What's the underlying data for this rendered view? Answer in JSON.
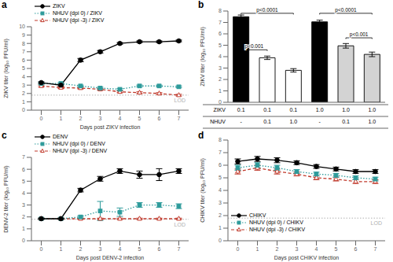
{
  "chart_data": [
    {
      "type": "line",
      "title": "a",
      "xlabel": "Days post ZIKV infection",
      "ylabel": "ZIKV titer (log₁₀ PFU/ml)",
      "x": [
        0,
        1,
        2,
        3,
        4,
        5,
        6,
        7
      ],
      "xlim": [
        -0.5,
        7.5
      ],
      "xticks": [
        0,
        1,
        2,
        3,
        4,
        5,
        6,
        7
      ],
      "ylim": [
        0,
        10
      ],
      "yticks": [
        0,
        1,
        2,
        3,
        4,
        5,
        6,
        7,
        8,
        9,
        10
      ],
      "legend": "upper left",
      "grid": false,
      "series": [
        {
          "name": "ZIKV",
          "color": "#000000",
          "marker": "circle",
          "line_style": "solid",
          "values": [
            3.3,
            3.0,
            6.0,
            7.0,
            8.0,
            8.2,
            8.2,
            8.3
          ],
          "errors": [
            0.1,
            0.1,
            0.2,
            0.15,
            0.1,
            0.1,
            0.1,
            0.1
          ]
        },
        {
          "name": "NHUV (dpi 0) / ZIKV",
          "color": "#2E9B9B",
          "marker": "square",
          "line_style": "dotted",
          "values": [
            3.2,
            3.2,
            2.9,
            2.65,
            2.5,
            2.9,
            2.9,
            2.8
          ],
          "errors": [
            0.1,
            0.1,
            0.1,
            0.1,
            0.1,
            0.1,
            0.1,
            0.1
          ]
        },
        {
          "name": "NHUV (dpi -3) / ZIKV",
          "color": "#C0392B",
          "marker": "open_triangle",
          "line_style": "dashed",
          "values": [
            2.9,
            2.7,
            2.65,
            2.5,
            2.2,
            2.1,
            2.0,
            1.8
          ],
          "errors": [
            0.1,
            0.1,
            0.1,
            0.1,
            0.1,
            0.1,
            0.1,
            0.1
          ]
        }
      ],
      "annotations": [
        {
          "text": "LOD",
          "y": 1.8,
          "color": "#B0B0B0",
          "line_style": "dotted"
        }
      ]
    },
    {
      "type": "bar",
      "title": "b",
      "ylabel": "ZIKV titer (log₁₀ PFU/ml)",
      "categories": [
        null,
        null,
        null,
        null,
        null,
        null
      ],
      "values": [
        7.5,
        3.9,
        2.8,
        7.05,
        4.95,
        4.2
      ],
      "errors": [
        0.15,
        0.15,
        0.15,
        0.15,
        0.2,
        0.2
      ],
      "colors": [
        "black",
        "white",
        "white",
        "black",
        "lightgray",
        "lightgray"
      ],
      "edge_colors": [
        "black",
        "black",
        "black",
        "black",
        "black",
        "black"
      ],
      "ylim": [
        0,
        8
      ],
      "yticks": [
        0,
        1,
        2,
        3,
        4,
        5,
        6,
        7,
        8
      ],
      "grid": false,
      "annotations": [
        {
          "text": "p<0.0001",
          "from": 0,
          "to": 2,
          "y": 7.7
        },
        {
          "text": "p<0.001",
          "from": 0,
          "to": 1,
          "y": 4.5
        },
        {
          "text": "p<0.0001",
          "from": 3,
          "to": 5,
          "y": 7.7
        },
        {
          "text": "p<0.001",
          "from": 4,
          "to": 5,
          "y": 5.55
        }
      ],
      "table": [
        {
          "label": "ZIKV",
          "values": [
            "0.1",
            "0.1",
            "0.1",
            "1.0",
            "1.0",
            "1.0"
          ]
        },
        {
          "label": "NHUV",
          "values": [
            "-",
            "0.1",
            "1.0",
            "-",
            "0.1",
            "1.0"
          ]
        }
      ]
    },
    {
      "type": "line",
      "title": "c",
      "xlabel": "Days post DENV-2 infection",
      "ylabel": "DENV-2 titer (log₁₀ PFU/ml)",
      "x": [
        0,
        1,
        2,
        3,
        4,
        5,
        6,
        7
      ],
      "xlim": [
        -0.5,
        7.5
      ],
      "xticks": [
        0,
        1,
        2,
        3,
        4,
        5,
        6,
        7
      ],
      "ylim": [
        0,
        7
      ],
      "yticks": [
        0,
        1,
        2,
        3,
        4,
        5,
        6,
        7
      ],
      "legend": "upper left",
      "grid": false,
      "series": [
        {
          "name": "DENV",
          "color": "#000000",
          "marker": "circle",
          "line_style": "solid",
          "values": [
            1.85,
            1.85,
            4.25,
            5.2,
            5.85,
            5.55,
            5.55,
            5.85
          ],
          "errors": [
            0.05,
            0.05,
            0.15,
            0.2,
            0.2,
            0.3,
            0.5,
            0.2
          ]
        },
        {
          "name": "NHUV (dpi 0) / DENV",
          "color": "#2E9B9B",
          "marker": "square",
          "line_style": "dotted",
          "values": [
            1.85,
            1.85,
            2.0,
            2.5,
            2.4,
            3.0,
            3.0,
            2.9
          ],
          "errors": [
            0.05,
            0.05,
            0.1,
            0.8,
            0.35,
            0.2,
            0.2,
            0.2
          ]
        },
        {
          "name": "NHUV (dpi -3) / DENV",
          "color": "#C0392B",
          "marker": "open_triangle",
          "line_style": "dashed",
          "values": [
            1.85,
            1.85,
            1.85,
            1.85,
            1.85,
            1.85,
            1.85,
            1.85
          ],
          "errors": [
            0.05,
            0.05,
            0.05,
            0.05,
            0.05,
            0.05,
            0.05,
            0.05
          ]
        }
      ],
      "annotations": [
        {
          "text": "LOD",
          "y": 1.8,
          "color": "#B0B0B0",
          "line_style": "dotted"
        }
      ]
    },
    {
      "type": "line",
      "title": "d",
      "xlabel": "Days post CHIKV infection",
      "ylabel": "CHIKV titer (log₁₀ PFU/ml)",
      "x": [
        0,
        1,
        2,
        3,
        4,
        5,
        6,
        7
      ],
      "xlim": [
        -0.5,
        7.5
      ],
      "xticks": [
        0,
        1,
        2,
        3,
        4,
        5,
        6,
        7
      ],
      "ylim": [
        0,
        8
      ],
      "yticks": [
        0,
        1,
        2,
        3,
        4,
        5,
        6,
        7,
        8
      ],
      "legend": "lower left",
      "grid": false,
      "series": [
        {
          "name": "CHIKV",
          "color": "#000000",
          "marker": "circle",
          "line_style": "solid",
          "values": [
            6.3,
            6.5,
            6.4,
            6.2,
            5.9,
            5.7,
            5.5,
            5.5
          ],
          "errors": [
            0.2,
            0.2,
            0.2,
            0.15,
            0.15,
            0.15,
            0.15,
            0.15
          ]
        },
        {
          "name": "NHUV (dpi 0) / CHIKV",
          "color": "#2E9B9B",
          "marker": "square",
          "line_style": "dotted",
          "values": [
            5.8,
            6.0,
            5.8,
            5.5,
            5.3,
            5.2,
            5.0,
            4.9
          ],
          "errors": [
            0.2,
            0.2,
            0.2,
            0.15,
            0.15,
            0.15,
            0.15,
            0.15
          ]
        },
        {
          "name": "NHUV (dpi -3) / CHIKV",
          "color": "#C0392B",
          "marker": "open_triangle",
          "line_style": "dashed",
          "values": [
            5.5,
            5.8,
            5.5,
            5.3,
            5.0,
            4.9,
            4.7,
            4.7
          ],
          "errors": [
            0.2,
            0.2,
            0.2,
            0.15,
            0.15,
            0.15,
            0.15,
            0.15
          ]
        }
      ],
      "annotations": [
        {
          "text": "LOD",
          "y": 1.8,
          "color": "#B0B0B0",
          "line_style": "dotted"
        }
      ]
    }
  ]
}
